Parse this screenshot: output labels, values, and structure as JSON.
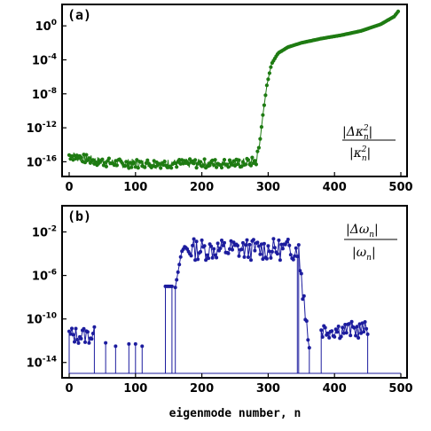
{
  "chart_data": [
    {
      "type": "scatter",
      "panel_label": "(a)",
      "annotation": {
        "num": "|Δκ",
        "num_sub": "n",
        "num_sup": "2",
        "den": "|κ",
        "den_sub": "n",
        "den_sup": "2"
      },
      "xlim": [
        0,
        500
      ],
      "ylim_log10": [
        -17,
        2
      ],
      "x_ticks": [
        "0",
        "100",
        "200",
        "300",
        "400",
        "500"
      ],
      "y_ticks": [
        {
          "base": "10",
          "exp": "0",
          "value": 0
        },
        {
          "base": "10",
          "exp": "-4",
          "value": -4
        },
        {
          "base": "10",
          "exp": "-8",
          "value": -8
        },
        {
          "base": "10",
          "exp": "-12",
          "value": -12
        },
        {
          "base": "10",
          "exp": "-16",
          "value": -16
        }
      ],
      "color": "#1e7b12",
      "yscale": "log",
      "series": [
        {
          "points_log10": [
            [
              0,
              -15.2
            ],
            [
              20,
              -15.6
            ],
            [
              40,
              -15.9
            ],
            [
              60,
              -16.1
            ],
            [
              80,
              -16.2
            ],
            [
              120,
              -16.2
            ],
            [
              160,
              -16.2
            ],
            [
              200,
              -16.2
            ],
            [
              240,
              -16.2
            ],
            [
              270,
              -16.1
            ],
            [
              282,
              -15.9
            ],
            [
              287,
              -14.0
            ],
            [
              292,
              -10.5
            ],
            [
              298,
              -7.0
            ],
            [
              305,
              -4.5
            ],
            [
              315,
              -3.2
            ],
            [
              330,
              -2.5
            ],
            [
              350,
              -2.0
            ],
            [
              380,
              -1.5
            ],
            [
              410,
              -1.1
            ],
            [
              440,
              -0.6
            ],
            [
              470,
              0.2
            ],
            [
              490,
              1.1
            ],
            [
              497,
              1.8
            ]
          ],
          "noise_amplitude": 0.55,
          "noise_range": [
            0,
            286
          ]
        }
      ]
    },
    {
      "type": "line",
      "panel_label": "(b)",
      "annotation": {
        "num": "|Δω",
        "num_sub": "n",
        "den": "|ω",
        "den_sub": "n"
      },
      "xlabel": "eigenmode number, n",
      "xlim": [
        0,
        500
      ],
      "ylim_log10": [
        -15,
        0
      ],
      "x_ticks": [
        "0",
        "100",
        "200",
        "300",
        "400",
        "500"
      ],
      "y_ticks": [
        {
          "base": "10",
          "exp": "-2",
          "value": -2
        },
        {
          "base": "10",
          "exp": "-6",
          "value": -6
        },
        {
          "base": "10",
          "exp": "-10",
          "value": -10
        },
        {
          "base": "10",
          "exp": "-14",
          "value": -14
        }
      ],
      "color": "#1c1c9e",
      "yscale": "log",
      "segments": [
        {
          "x": [
            0,
            38
          ],
          "base": -11.5,
          "noise": 0.8
        },
        {
          "x": [
            145,
            155
          ],
          "base": -7,
          "noise": 0
        },
        {
          "x": [
            160,
            345
          ],
          "base": -3.6,
          "noise": 1.0
        },
        {
          "x": [
            346,
            362
          ],
          "base": -9,
          "noise": 1.5
        },
        {
          "x": [
            380,
            450
          ],
          "base": -11.0,
          "noise": 0.8
        }
      ],
      "sparse_points": [
        [
          55,
          -12.2
        ],
        [
          70,
          -12.5
        ],
        [
          90,
          -12.3
        ],
        [
          100,
          -12.3
        ],
        [
          110,
          -12.5
        ]
      ],
      "floor_log10": -15
    }
  ]
}
